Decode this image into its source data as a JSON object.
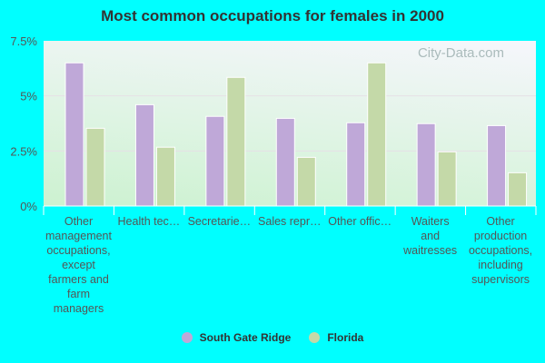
{
  "chart_data": {
    "type": "bar",
    "title": "Most common occupations for females in 2000",
    "categories": [
      "Other management occupations, except farmers and farm managers",
      "Health tec...",
      "Secretarie...",
      "Sales repr...",
      "Other offic...",
      "Waiters and waitresses",
      "Other production occupations, including supervisors"
    ],
    "category_lines": [
      [
        "Other",
        "management",
        "occupations,",
        "except",
        "farmers and",
        "farm",
        "managers"
      ],
      [
        "Health tec…"
      ],
      [
        "Secretarie…"
      ],
      [
        "Sales repr…"
      ],
      [
        "Other offic…"
      ],
      [
        "Waiters",
        "and",
        "waitresses"
      ],
      [
        "Other",
        "production",
        "occupations,",
        "including",
        "supervisors"
      ]
    ],
    "series": [
      {
        "name": "South Gate Ridge",
        "color": "#bfa8d8",
        "values": [
          6.5,
          4.6,
          4.07,
          3.98,
          3.78,
          3.74,
          3.65
        ]
      },
      {
        "name": "Florida",
        "color": "#c4d9a8",
        "values": [
          3.53,
          2.67,
          5.84,
          2.21,
          6.5,
          2.46,
          1.51
        ]
      }
    ],
    "yticks": [
      "0%",
      "2.5%",
      "5%",
      "7.5%"
    ],
    "ylim": [
      0,
      7.5
    ],
    "grid": true,
    "legend": "bottom",
    "watermark": "City-Data.com"
  }
}
